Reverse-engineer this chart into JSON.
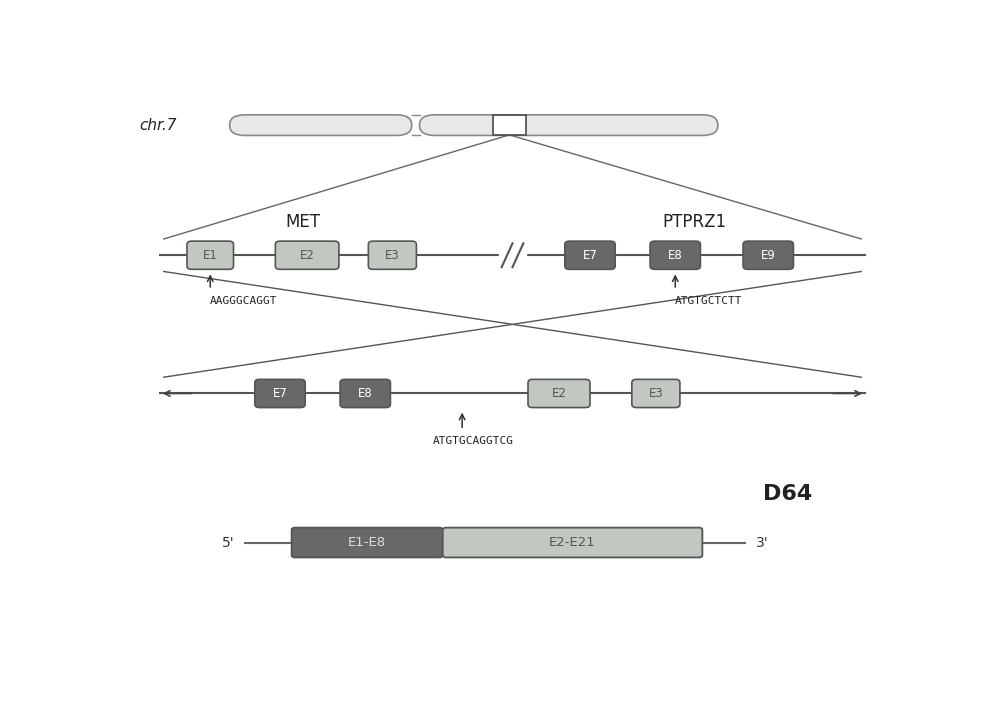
{
  "bg_color": "#ffffff",
  "chr7_label": "chr.7",
  "met_label": "MET",
  "ptprz1_label": "PTPRZ1",
  "d64_label": "D64",
  "seq1": "AAGGGCAGGT",
  "seq2": "ATGTGCTCTT",
  "seq3": "ATGTGCAGGTCG",
  "prime5": "5'",
  "prime3": "3'",
  "light_face": "#c0c8c0",
  "dark_face": "#686868",
  "line_color": "#555555",
  "chromo_outline": "#888888",
  "chromo_fill": "#e8e8e8",
  "text_color": "#222222",
  "arrow_color": "#333333",
  "cross_line_color": "#555555"
}
